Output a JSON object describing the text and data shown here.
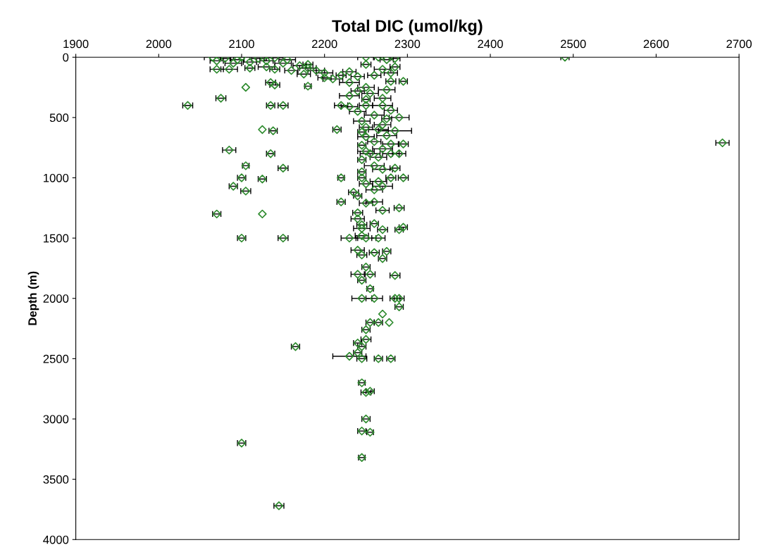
{
  "chart_data": {
    "type": "scatter",
    "xlabel": "Total DIC (umol/kg)",
    "ylabel": "Depth (m)",
    "xlim": [
      1900,
      2700
    ],
    "xticks": [
      1900,
      2000,
      2100,
      2200,
      2300,
      2400,
      2500,
      2600,
      2700
    ],
    "ylim": [
      4000,
      0
    ],
    "yticks": [
      0,
      500,
      1000,
      1500,
      2000,
      2500,
      3000,
      3500,
      4000
    ],
    "grid": false,
    "marker": "diamond",
    "series": [
      {
        "color": "#2e8b2e",
        "x": [
          2490,
          2680,
          2035,
          2075,
          2135,
          2150,
          2105,
          2135,
          2140,
          2180,
          2125,
          2138,
          2215,
          2085,
          2135,
          2105,
          2150,
          2220,
          2100,
          2125,
          2090,
          2105,
          2070,
          2125,
          2100,
          2150,
          2100,
          2145,
          2165,
          2245,
          2250,
          2245,
          2255,
          2245,
          2255,
          2250,
          2230,
          2245,
          2265,
          2280,
          2240,
          2245,
          2240,
          2250,
          2250,
          2255,
          2265,
          2278,
          2270,
          2290,
          2245,
          2260,
          2285,
          2290,
          2255,
          2245,
          2240,
          2255,
          2285,
          2250,
          2270,
          2245,
          2260,
          2275,
          2240,
          2230,
          2250,
          2265,
          2245,
          2245,
          2270,
          2290,
          2295,
          2245,
          2260,
          2240,
          2240,
          2270,
          2290,
          2220,
          2250,
          2260,
          2235,
          2240,
          2260,
          2270,
          2250,
          2265,
          2245,
          2280,
          2295,
          2245,
          2270,
          2285,
          2260,
          2245,
          2265,
          2280,
          2255,
          2290,
          2250,
          2270,
          2245,
          2280,
          2295,
          2260,
          2250,
          2275,
          2245,
          2265,
          2285,
          2250,
          2270,
          2245,
          2275,
          2290,
          2260,
          2240,
          2280,
          2230,
          2250,
          2270,
          2220,
          2250,
          2270,
          2230,
          2255,
          2240,
          2275,
          2250,
          2295,
          2280,
          2230,
          2210,
          2240,
          2200,
          2260,
          2280,
          2230,
          2270,
          2285,
          2250,
          2275,
          2285,
          2250,
          2265,
          2065,
          2080,
          2100,
          2120,
          2140,
          2070,
          2090,
          2110,
          2130,
          2150,
          2170,
          2180,
          2160,
          2140,
          2110,
          2085,
          2070,
          2095,
          2155,
          2130,
          2190,
          2200,
          2220,
          2180,
          2175
        ],
        "values": [
          0,
          710,
          400,
          340,
          400,
          400,
          250,
          210,
          230,
          240,
          600,
          610,
          600,
          770,
          800,
          900,
          920,
          1000,
          1000,
          1010,
          1070,
          1110,
          1300,
          1300,
          1500,
          1500,
          3200,
          3720,
          2400,
          3320,
          3000,
          3100,
          3110,
          2700,
          2770,
          2780,
          2480,
          2500,
          2500,
          2500,
          2450,
          2400,
          2370,
          2340,
          2260,
          2200,
          2200,
          2200,
          2130,
          2070,
          2000,
          2000,
          2000,
          2000,
          1920,
          1850,
          1800,
          1800,
          1810,
          1740,
          1670,
          1640,
          1620,
          1610,
          1600,
          1500,
          1500,
          1500,
          1480,
          1420,
          1430,
          1430,
          1410,
          1390,
          1380,
          1340,
          1290,
          1270,
          1250,
          1200,
          1210,
          1200,
          1120,
          1150,
          1100,
          1070,
          1050,
          1030,
          1000,
          1000,
          1000,
          950,
          930,
          920,
          900,
          850,
          830,
          800,
          800,
          800,
          780,
          760,
          730,
          720,
          720,
          700,
          660,
          650,
          620,
          600,
          610,
          580,
          560,
          530,
          510,
          500,
          480,
          450,
          440,
          410,
          400,
          400,
          400,
          350,
          340,
          320,
          300,
          280,
          270,
          250,
          200,
          200,
          210,
          180,
          160,
          130,
          150,
          130,
          120,
          100,
          80,
          60,
          20,
          10,
          0,
          0,
          0,
          10,
          0,
          10,
          5,
          30,
          50,
          40,
          30,
          50,
          70,
          90,
          110,
          100,
          90,
          100,
          100,
          20,
          20,
          80,
          110,
          170,
          150,
          60,
          140
        ],
        "xerrors": [
          5,
          8,
          6,
          6,
          5,
          6,
          null,
          6,
          6,
          4,
          null,
          5,
          5,
          8,
          5,
          4,
          6,
          4,
          5,
          5,
          5,
          6,
          5,
          null,
          5,
          6,
          5,
          6,
          5,
          4,
          5,
          5,
          4,
          4,
          5,
          6,
          20,
          6,
          5,
          5,
          5,
          5,
          5,
          6,
          5,
          5,
          5,
          null,
          null,
          5,
          12,
          10,
          6,
          6,
          4,
          5,
          8,
          6,
          6,
          5,
          5,
          6,
          6,
          5,
          8,
          10,
          12,
          8,
          8,
          10,
          6,
          5,
          5,
          6,
          5,
          8,
          6,
          8,
          6,
          5,
          8,
          10,
          6,
          5,
          10,
          12,
          8,
          10,
          5,
          6,
          6,
          5,
          12,
          6,
          12,
          5,
          10,
          10,
          12,
          8,
          10,
          12,
          5,
          10,
          6,
          8,
          10,
          12,
          5,
          12,
          20,
          8,
          10,
          10,
          6,
          12,
          12,
          10,
          8,
          10,
          8,
          12,
          8,
          5,
          10,
          12,
          10,
          8,
          10,
          10,
          5,
          6,
          12,
          12,
          8,
          10,
          8,
          8,
          8,
          10,
          6,
          6,
          8,
          6,
          10,
          6,
          10,
          6,
          10,
          8,
          10,
          8,
          10,
          8,
          8,
          10,
          8,
          10,
          8,
          6,
          6,
          10,
          8,
          8,
          10,
          10,
          10,
          8,
          6,
          6,
          8
        ]
      }
    ]
  }
}
